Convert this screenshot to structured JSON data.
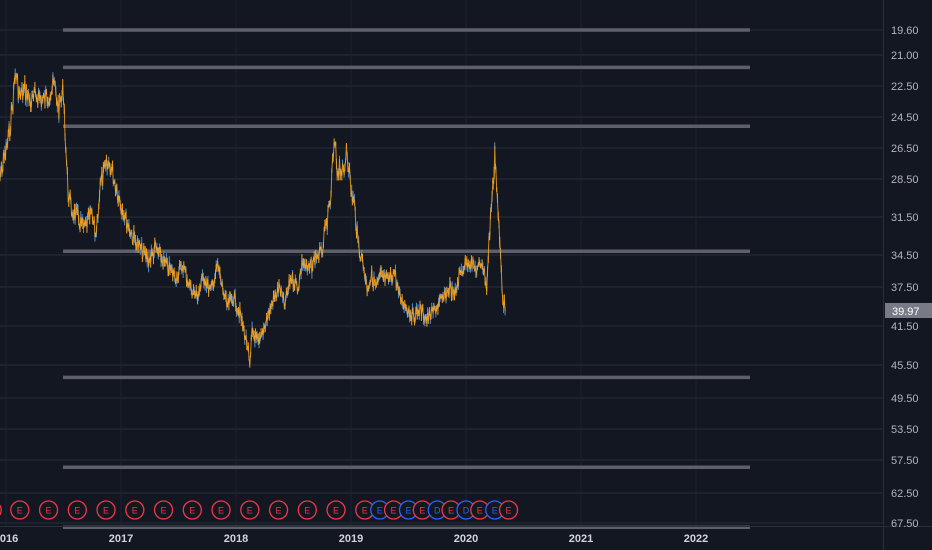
{
  "chart_data": {
    "type": "candlestick",
    "y_axis": {
      "inverted": true,
      "range": [
        18.5,
        68.5
      ],
      "ticks": [
        "19.60",
        "21.00",
        "22.50",
        "24.50",
        "26.50",
        "28.50",
        "31.50",
        "34.50",
        "37.50",
        "41.50",
        "45.50",
        "49.50",
        "53.50",
        "57.50",
        "62.50",
        "67.50"
      ]
    },
    "x_axis": {
      "ticks": [
        "2016",
        "2017",
        "2018",
        "2019",
        "2020",
        "2021",
        "2022"
      ]
    },
    "current_price": "39.97",
    "horizontal_levels": [
      19.6,
      21.6,
      25.1,
      34.2,
      47.0,
      58.6,
      68.2
    ],
    "earnings_markers": [
      {
        "label": "E",
        "date": 2015.88,
        "color": "#f23645"
      },
      {
        "label": "E",
        "date": 2016.12,
        "color": "#f23645"
      },
      {
        "label": "E",
        "date": 2016.37,
        "color": "#f23645"
      },
      {
        "label": "E",
        "date": 2016.62,
        "color": "#f23645"
      },
      {
        "label": "E",
        "date": 2016.87,
        "color": "#f23645"
      },
      {
        "label": "E",
        "date": 2017.12,
        "color": "#f23645"
      },
      {
        "label": "E",
        "date": 2017.37,
        "color": "#f23645"
      },
      {
        "label": "E",
        "date": 2017.62,
        "color": "#f23645"
      },
      {
        "label": "E",
        "date": 2017.87,
        "color": "#f23645"
      },
      {
        "label": "E",
        "date": 2018.12,
        "color": "#f23645"
      },
      {
        "label": "E",
        "date": 2018.37,
        "color": "#f23645"
      },
      {
        "label": "E",
        "date": 2018.62,
        "color": "#f23645"
      },
      {
        "label": "E",
        "date": 2018.87,
        "color": "#f23645"
      },
      {
        "label": "E",
        "date": 2019.12,
        "color": "#f23645"
      },
      {
        "label": "E",
        "date": 2019.25,
        "color": "#2962ff"
      },
      {
        "label": "E",
        "date": 2019.37,
        "color": "#f23645"
      },
      {
        "label": "E",
        "date": 2019.5,
        "color": "#2962ff"
      },
      {
        "label": "E",
        "date": 2019.62,
        "color": "#f23645"
      },
      {
        "label": "D",
        "date": 2019.75,
        "color": "#2962ff"
      },
      {
        "label": "E",
        "date": 2019.87,
        "color": "#f23645"
      },
      {
        "label": "D",
        "date": 2020.0,
        "color": "#2962ff"
      },
      {
        "label": "E",
        "date": 2020.12,
        "color": "#f23645"
      },
      {
        "label": "E",
        "date": 2020.25,
        "color": "#2962ff"
      },
      {
        "label": "E",
        "date": 2020.37,
        "color": "#f23645"
      }
    ],
    "series": [
      {
        "name": "price",
        "points": [
          [
            2015.9,
            29.5
          ],
          [
            2015.96,
            28.0
          ],
          [
            2016.02,
            26.0
          ],
          [
            2016.06,
            23.5
          ],
          [
            2016.08,
            21.8
          ],
          [
            2016.12,
            23.2
          ],
          [
            2016.17,
            22.8
          ],
          [
            2016.22,
            23.6
          ],
          [
            2016.27,
            23.0
          ],
          [
            2016.32,
            23.5
          ],
          [
            2016.37,
            23.0
          ],
          [
            2016.42,
            22.5
          ],
          [
            2016.46,
            24.0
          ],
          [
            2016.5,
            22.8
          ],
          [
            2016.52,
            26.5
          ],
          [
            2016.54,
            29.5
          ],
          [
            2016.57,
            31.0
          ],
          [
            2016.62,
            31.5
          ],
          [
            2016.68,
            32.5
          ],
          [
            2016.74,
            31.2
          ],
          [
            2016.78,
            33.0
          ],
          [
            2016.82,
            29.0
          ],
          [
            2016.86,
            28.0
          ],
          [
            2016.9,
            27.5
          ],
          [
            2016.94,
            28.5
          ],
          [
            2017.0,
            30.5
          ],
          [
            2017.05,
            31.8
          ],
          [
            2017.1,
            33.0
          ],
          [
            2017.18,
            34.2
          ],
          [
            2017.24,
            35.0
          ],
          [
            2017.3,
            34.0
          ],
          [
            2017.36,
            35.0
          ],
          [
            2017.42,
            35.8
          ],
          [
            2017.48,
            36.5
          ],
          [
            2017.54,
            35.5
          ],
          [
            2017.6,
            37.5
          ],
          [
            2017.66,
            38.5
          ],
          [
            2017.72,
            36.5
          ],
          [
            2017.78,
            38.0
          ],
          [
            2017.84,
            35.5
          ],
          [
            2017.88,
            37.5
          ],
          [
            2017.92,
            39.5
          ],
          [
            2017.98,
            38.5
          ],
          [
            2018.04,
            40.5
          ],
          [
            2018.1,
            43.5
          ],
          [
            2018.12,
            46.0
          ],
          [
            2018.14,
            42.0
          ],
          [
            2018.2,
            43.5
          ],
          [
            2018.26,
            41.0
          ],
          [
            2018.32,
            39.0
          ],
          [
            2018.38,
            37.5
          ],
          [
            2018.42,
            39.5
          ],
          [
            2018.48,
            36.5
          ],
          [
            2018.54,
            37.5
          ],
          [
            2018.58,
            35.0
          ],
          [
            2018.62,
            36.0
          ],
          [
            2018.66,
            35.5
          ],
          [
            2018.7,
            34.5
          ],
          [
            2018.74,
            34.5
          ],
          [
            2018.78,
            32.5
          ],
          [
            2018.82,
            30.5
          ],
          [
            2018.84,
            27.5
          ],
          [
            2018.86,
            26.3
          ],
          [
            2018.88,
            28.0
          ],
          [
            2018.9,
            27.5
          ],
          [
            2018.94,
            28.5
          ],
          [
            2018.96,
            26.2
          ],
          [
            2018.98,
            27.5
          ],
          [
            2019.0,
            29.5
          ],
          [
            2019.03,
            30.5
          ],
          [
            2019.06,
            33.5
          ],
          [
            2019.1,
            35.0
          ],
          [
            2019.14,
            37.5
          ],
          [
            2019.18,
            36.5
          ],
          [
            2019.22,
            37.5
          ],
          [
            2019.26,
            36.5
          ],
          [
            2019.32,
            37.0
          ],
          [
            2019.38,
            36.0
          ],
          [
            2019.42,
            38.5
          ],
          [
            2019.48,
            39.5
          ],
          [
            2019.54,
            40.5
          ],
          [
            2019.6,
            39.8
          ],
          [
            2019.66,
            40.8
          ],
          [
            2019.72,
            40.0
          ],
          [
            2019.78,
            39.0
          ],
          [
            2019.82,
            38.5
          ],
          [
            2019.86,
            37.5
          ],
          [
            2019.9,
            38.5
          ],
          [
            2019.94,
            36.5
          ],
          [
            2019.98,
            35.5
          ],
          [
            2020.02,
            35.0
          ],
          [
            2020.06,
            35.5
          ],
          [
            2020.1,
            36.0
          ],
          [
            2020.14,
            35.0
          ],
          [
            2020.18,
            37.5
          ],
          [
            2020.2,
            33.5
          ],
          [
            2020.22,
            30.5
          ],
          [
            2020.24,
            28.5
          ],
          [
            2020.25,
            26.5
          ],
          [
            2020.26,
            28.0
          ],
          [
            2020.28,
            31.5
          ],
          [
            2020.3,
            34.5
          ],
          [
            2020.32,
            38.5
          ],
          [
            2020.34,
            39.97
          ]
        ]
      }
    ]
  }
}
